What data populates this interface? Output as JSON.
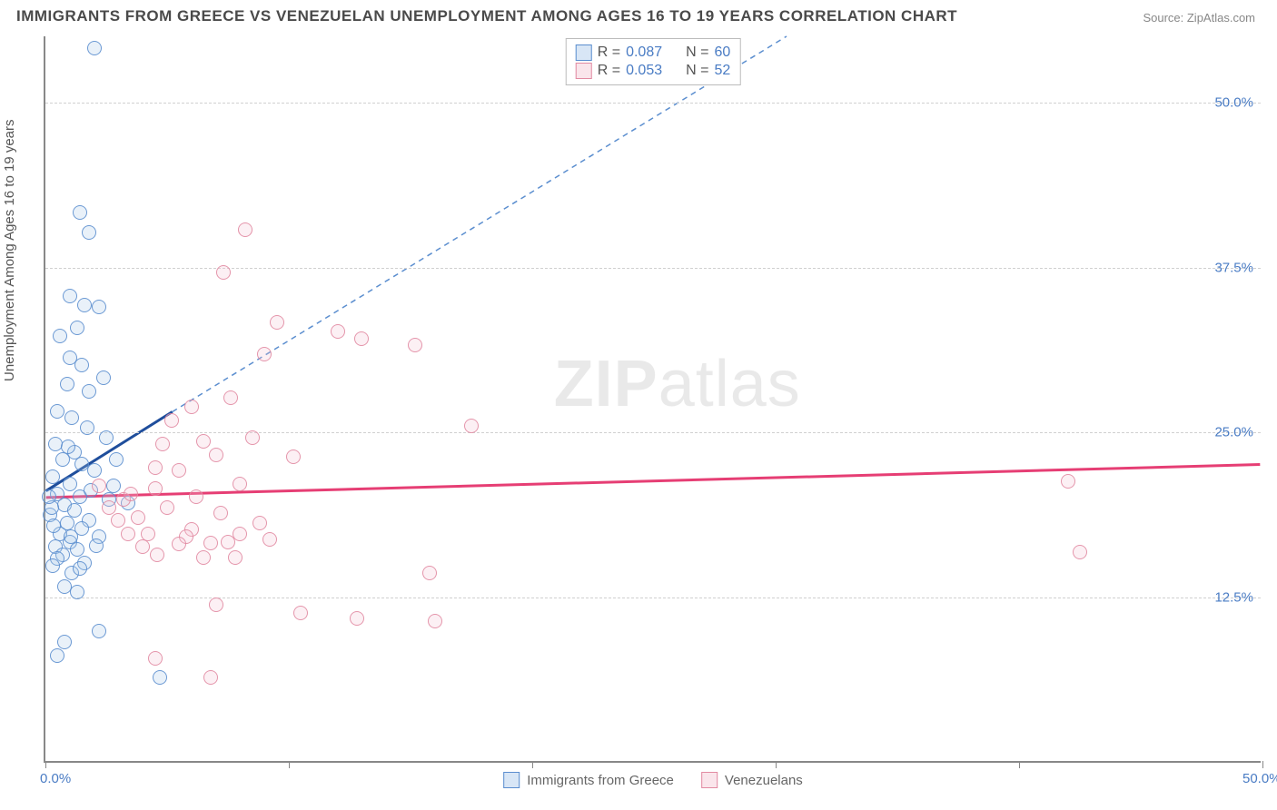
{
  "title": "IMMIGRANTS FROM GREECE VS VENEZUELAN UNEMPLOYMENT AMONG AGES 16 TO 19 YEARS CORRELATION CHART",
  "source_label": "Source: ZipAtlas.com",
  "ylabel": "Unemployment Among Ages 16 to 19 years",
  "watermark_bold": "ZIP",
  "watermark_rest": "atlas",
  "chart": {
    "type": "scatter",
    "xlim": [
      0,
      50
    ],
    "ylim": [
      0,
      55
    ],
    "x_ticks": [
      0,
      10,
      20,
      30,
      40,
      50
    ],
    "x_tick_labels": {
      "0": "0.0%",
      "50": "50.0%"
    },
    "y_gridlines": [
      12.5,
      25.0,
      37.5,
      50.0
    ],
    "y_tick_labels": [
      "12.5%",
      "25.0%",
      "37.5%",
      "50.0%"
    ],
    "background_color": "#ffffff",
    "grid_color": "#d0d0d0",
    "axis_color": "#888888",
    "tick_label_color": "#4a7cc4",
    "marker_radius": 8,
    "marker_border_width": 1.5,
    "marker_fill_opacity": 0.28,
    "series": [
      {
        "name": "Immigrants from Greece",
        "color_border": "#5b8ecf",
        "color_fill": "#a9c8ea",
        "R": "0.087",
        "N": "60",
        "trend": {
          "solid": {
            "x1": 0,
            "y1": 20.5,
            "x2": 5.2,
            "y2": 26.5,
            "color": "#1f4e9c",
            "width": 3
          },
          "dashed": {
            "x1": 5.2,
            "y1": 26.5,
            "x2": 30.5,
            "y2": 55,
            "color": "#5b8ecf",
            "width": 1.5,
            "dash": "6,5"
          }
        },
        "points": [
          [
            2.0,
            54.0
          ],
          [
            1.4,
            41.5
          ],
          [
            1.8,
            40.0
          ],
          [
            1.0,
            35.2
          ],
          [
            1.6,
            34.5
          ],
          [
            2.2,
            34.4
          ],
          [
            1.3,
            32.8
          ],
          [
            0.6,
            32.2
          ],
          [
            1.0,
            30.5
          ],
          [
            1.5,
            30.0
          ],
          [
            2.4,
            29.0
          ],
          [
            0.9,
            28.5
          ],
          [
            1.8,
            28.0
          ],
          [
            0.5,
            26.5
          ],
          [
            1.1,
            26.0
          ],
          [
            1.7,
            25.2
          ],
          [
            2.5,
            24.5
          ],
          [
            0.4,
            24.0
          ],
          [
            1.2,
            23.4
          ],
          [
            0.7,
            22.8
          ],
          [
            1.5,
            22.5
          ],
          [
            2.0,
            22.0
          ],
          [
            0.3,
            21.5
          ],
          [
            1.0,
            21.0
          ],
          [
            0.5,
            20.2
          ],
          [
            1.4,
            20.0
          ],
          [
            2.6,
            19.8
          ],
          [
            0.8,
            19.4
          ],
          [
            1.2,
            19.0
          ],
          [
            0.2,
            18.6
          ],
          [
            1.8,
            18.2
          ],
          [
            0.9,
            18.0
          ],
          [
            1.5,
            17.6
          ],
          [
            0.6,
            17.2
          ],
          [
            2.2,
            17.0
          ],
          [
            1.0,
            16.6
          ],
          [
            0.4,
            16.2
          ],
          [
            1.3,
            16.0
          ],
          [
            0.7,
            15.6
          ],
          [
            1.6,
            15.0
          ],
          [
            0.5,
            15.3
          ],
          [
            0.3,
            14.8
          ],
          [
            1.1,
            14.2
          ],
          [
            1.4,
            14.6
          ],
          [
            0.8,
            13.2
          ],
          [
            1.3,
            12.8
          ],
          [
            2.2,
            9.8
          ],
          [
            0.8,
            9.0
          ],
          [
            0.5,
            8.0
          ],
          [
            4.7,
            6.3
          ],
          [
            2.8,
            20.8
          ],
          [
            3.4,
            19.5
          ],
          [
            0.25,
            19.2
          ],
          [
            0.35,
            17.8
          ],
          [
            2.1,
            16.3
          ],
          [
            2.9,
            22.8
          ],
          [
            1.85,
            20.5
          ],
          [
            0.15,
            20.0
          ],
          [
            1.05,
            17.0
          ],
          [
            0.95,
            23.8
          ]
        ]
      },
      {
        "name": "Venezuelans",
        "color_border": "#e28aa2",
        "color_fill": "#f4c6d3",
        "R": "0.053",
        "N": "52",
        "trend": {
          "solid": {
            "x1": 0,
            "y1": 20.0,
            "x2": 50,
            "y2": 22.5,
            "color": "#e63e74",
            "width": 3
          }
        },
        "points": [
          [
            8.2,
            40.2
          ],
          [
            7.3,
            37.0
          ],
          [
            9.5,
            33.2
          ],
          [
            12.0,
            32.5
          ],
          [
            9.0,
            30.8
          ],
          [
            15.2,
            31.5
          ],
          [
            7.6,
            27.5
          ],
          [
            6.0,
            26.8
          ],
          [
            13.0,
            32.0
          ],
          [
            5.2,
            25.8
          ],
          [
            8.5,
            24.5
          ],
          [
            4.8,
            24.0
          ],
          [
            6.5,
            24.2
          ],
          [
            17.5,
            25.4
          ],
          [
            10.2,
            23.0
          ],
          [
            7.0,
            23.2
          ],
          [
            5.5,
            22.0
          ],
          [
            42.0,
            21.2
          ],
          [
            8.0,
            21.0
          ],
          [
            4.5,
            20.6
          ],
          [
            6.2,
            20.0
          ],
          [
            3.2,
            19.8
          ],
          [
            5.0,
            19.2
          ],
          [
            7.2,
            18.8
          ],
          [
            8.8,
            18.0
          ],
          [
            3.8,
            18.4
          ],
          [
            6.0,
            17.5
          ],
          [
            4.2,
            17.2
          ],
          [
            5.8,
            17.0
          ],
          [
            7.5,
            16.6
          ],
          [
            4.0,
            16.2
          ],
          [
            5.5,
            16.4
          ],
          [
            6.8,
            16.5
          ],
          [
            8.0,
            17.2
          ],
          [
            9.2,
            16.8
          ],
          [
            4.6,
            15.6
          ],
          [
            7.8,
            15.4
          ],
          [
            6.5,
            15.4
          ],
          [
            42.5,
            15.8
          ],
          [
            15.8,
            14.2
          ],
          [
            7.0,
            11.8
          ],
          [
            10.5,
            11.2
          ],
          [
            12.8,
            10.8
          ],
          [
            16.0,
            10.6
          ],
          [
            4.5,
            7.8
          ],
          [
            6.8,
            6.3
          ],
          [
            3.5,
            20.2
          ],
          [
            4.5,
            22.2
          ],
          [
            3.0,
            18.2
          ],
          [
            2.6,
            19.2
          ],
          [
            2.2,
            20.8
          ],
          [
            3.4,
            17.2
          ]
        ]
      }
    ]
  },
  "legend_bottom": [
    {
      "label": "Immigrants from Greece",
      "border": "#5b8ecf",
      "fill": "#a9c8ea"
    },
    {
      "label": "Venezuelans",
      "border": "#e28aa2",
      "fill": "#f4c6d3"
    }
  ]
}
